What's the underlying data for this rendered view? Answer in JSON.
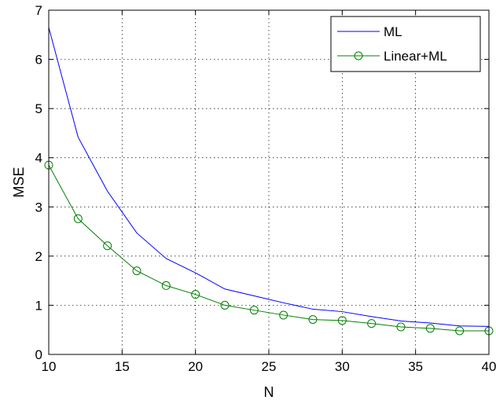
{
  "chart_data": {
    "type": "line",
    "xlabel": "N",
    "ylabel": "MSE",
    "xlim": [
      10,
      40
    ],
    "ylim": [
      0,
      7
    ],
    "xticks": [
      10,
      15,
      20,
      25,
      30,
      35,
      40
    ],
    "yticks": [
      0,
      1,
      2,
      3,
      4,
      5,
      6,
      7
    ],
    "grid": true,
    "legend_position": "top-right",
    "x": [
      10,
      12,
      14,
      16,
      18,
      20,
      22,
      24,
      26,
      28,
      30,
      32,
      34,
      36,
      38,
      40
    ],
    "series": [
      {
        "name": "ML",
        "color": "#0000ff",
        "marker": "none",
        "values": [
          6.65,
          4.42,
          3.32,
          2.47,
          1.95,
          1.66,
          1.33,
          1.19,
          1.05,
          0.92,
          0.87,
          0.77,
          0.68,
          0.64,
          0.58,
          0.57
        ]
      },
      {
        "name": "Linear+ML",
        "color": "#008000",
        "marker": "circle",
        "values": [
          3.85,
          2.76,
          2.21,
          1.7,
          1.4,
          1.22,
          1.0,
          0.9,
          0.8,
          0.71,
          0.69,
          0.63,
          0.56,
          0.53,
          0.48,
          0.48
        ]
      }
    ]
  }
}
